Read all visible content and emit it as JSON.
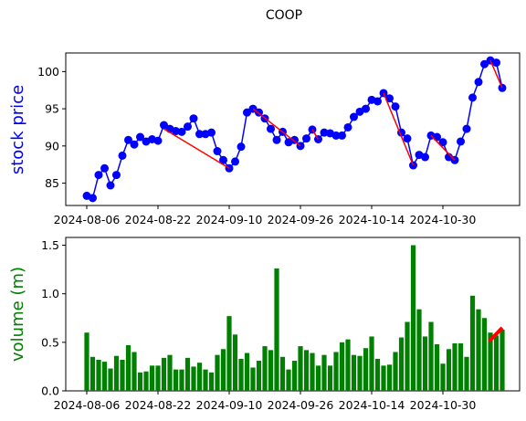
{
  "title": "COOP",
  "colors": {
    "price_line": "#0000ff",
    "volume_bar": "#008000",
    "trend": "#ff0000",
    "axis": "#000000"
  },
  "chart_data": [
    {
      "type": "line",
      "ylabel": "stock price",
      "xlabel": "",
      "x_tick_labels": [
        "2024-08-06",
        "2024-08-22",
        "2024-09-10",
        "2024-09-26",
        "2024-10-14",
        "2024-10-30"
      ],
      "ylim": [
        82,
        102.5
      ],
      "y_ticks": [
        85,
        90,
        95,
        100
      ],
      "grid": false,
      "series": [
        {
          "values": [
            83.3,
            83.0,
            86.1,
            87.0,
            84.7,
            86.1,
            88.7,
            90.8,
            90.2,
            91.2,
            90.6,
            90.9,
            90.7,
            92.8,
            92.3,
            92.0,
            91.9,
            92.6,
            93.7,
            91.6,
            91.6,
            91.8,
            89.3,
            88.1,
            87.0,
            87.9,
            89.9,
            94.5,
            95.0,
            94.5,
            93.7,
            92.3,
            90.8,
            91.9,
            90.5,
            90.8,
            90.0,
            91.0,
            92.2,
            90.9,
            91.8,
            91.7,
            91.4,
            91.4,
            92.5,
            93.9,
            94.6,
            95.0,
            96.2,
            96.0,
            97.1,
            96.4,
            95.3,
            91.8,
            91.0,
            87.4,
            88.8,
            88.5,
            91.4,
            91.2,
            90.5,
            88.5,
            88.1,
            90.6,
            92.3,
            96.5,
            98.6,
            101.0,
            101.5,
            101.2,
            97.8
          ]
        }
      ],
      "trend_segments": [
        {
          "from": [
            13,
            92.3
          ],
          "to": [
            24,
            87.0
          ]
        },
        {
          "from": [
            28,
            95.0
          ],
          "to": [
            36,
            90.0
          ]
        },
        {
          "from": [
            38,
            92.2
          ],
          "to": [
            39,
            90.9
          ]
        },
        {
          "from": [
            50,
            97.1
          ],
          "to": [
            55,
            87.4
          ]
        },
        {
          "from": [
            58,
            91.4
          ],
          "to": [
            62,
            88.1
          ]
        },
        {
          "from": [
            68,
            101.5
          ],
          "to": [
            70,
            97.8
          ]
        }
      ]
    },
    {
      "type": "bar",
      "ylabel": "volume (m)",
      "xlabel": "",
      "x_tick_labels": [
        "2024-08-06",
        "2024-08-22",
        "2024-09-10",
        "2024-09-26",
        "2024-10-14",
        "2024-10-30"
      ],
      "ylim": [
        0,
        1.58
      ],
      "y_ticks": [
        "0.0",
        "0.5",
        "1.0",
        "1.5"
      ],
      "grid": false,
      "series": [
        {
          "values": [
            0.6,
            0.35,
            0.32,
            0.3,
            0.23,
            0.36,
            0.32,
            0.47,
            0.4,
            0.19,
            0.2,
            0.26,
            0.26,
            0.34,
            0.37,
            0.22,
            0.22,
            0.34,
            0.25,
            0.29,
            0.22,
            0.19,
            0.37,
            0.43,
            0.77,
            0.58,
            0.33,
            0.39,
            0.24,
            0.31,
            0.46,
            0.42,
            1.26,
            0.35,
            0.22,
            0.31,
            0.46,
            0.42,
            0.39,
            0.26,
            0.37,
            0.26,
            0.4,
            0.5,
            0.53,
            0.37,
            0.36,
            0.44,
            0.56,
            0.33,
            0.26,
            0.27,
            0.4,
            0.55,
            0.71,
            1.5,
            0.84,
            0.56,
            0.71,
            0.48,
            0.28,
            0.43,
            0.49,
            0.49,
            0.35,
            0.98,
            0.84,
            0.75,
            0.6,
            0.57,
            0.63
          ]
        }
      ],
      "trend_segments": [
        {
          "from": [
            67.8,
            0.51
          ],
          "to": [
            70,
            0.65
          ]
        }
      ]
    }
  ]
}
